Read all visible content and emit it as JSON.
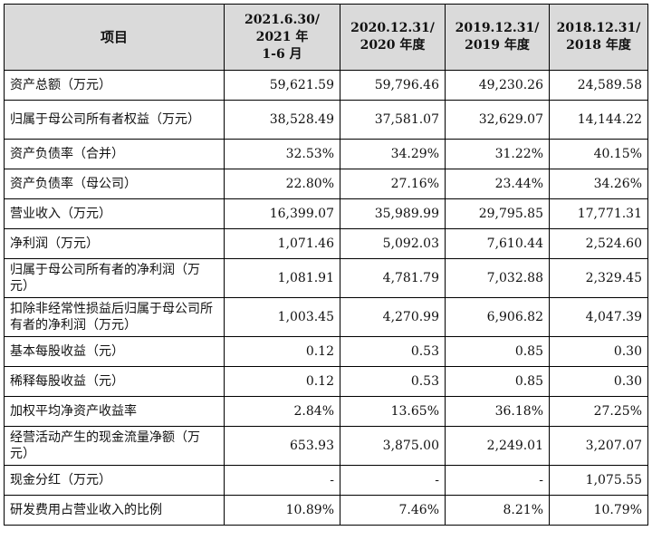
{
  "table": {
    "headers": [
      "项目",
      "2021.6.30/\n2021 年\n1-6 月",
      "2020.12.31/\n2020 年度",
      "2019.12.31/\n2019 年度",
      "2018.12.31/\n2018 年度"
    ],
    "rows": [
      {
        "label": "资产总额（万元）",
        "values": [
          "59,621.59",
          "59,796.46",
          "49,230.26",
          "24,589.58"
        ]
      },
      {
        "label": "归属于母公司所有者权益（万元）",
        "values": [
          "38,528.49",
          "37,581.07",
          "32,629.07",
          "14,144.22"
        ]
      },
      {
        "label": "资产负债率（合并）",
        "values": [
          "32.53%",
          "34.29%",
          "31.22%",
          "40.15%"
        ]
      },
      {
        "label": "资产负债率（母公司）",
        "values": [
          "22.80%",
          "27.16%",
          "23.44%",
          "34.26%"
        ]
      },
      {
        "label": "营业收入（万元）",
        "values": [
          "16,399.07",
          "35,989.99",
          "29,795.85",
          "17,771.31"
        ]
      },
      {
        "label": "净利润（万元）",
        "values": [
          "1,071.46",
          "5,092.03",
          "7,610.44",
          "2,524.60"
        ]
      },
      {
        "label": "归属于母公司所有者的净利润（万元）",
        "values": [
          "1,081.91",
          "4,781.79",
          "7,032.88",
          "2,329.45"
        ]
      },
      {
        "label": "扣除非经常性损益后归属于母公司所有者的净利润（万元）",
        "values": [
          "1,003.45",
          "4,270.99",
          "6,906.82",
          "4,047.39"
        ]
      },
      {
        "label": "基本每股收益（元）",
        "values": [
          "0.12",
          "0.53",
          "0.85",
          "0.30"
        ]
      },
      {
        "label": "稀释每股收益（元）",
        "values": [
          "0.12",
          "0.53",
          "0.85",
          "0.30"
        ]
      },
      {
        "label": "加权平均净资产收益率",
        "values": [
          "2.84%",
          "13.65%",
          "36.18%",
          "27.25%"
        ]
      },
      {
        "label": "经营活动产生的现金流量净额（万元）",
        "values": [
          "653.93",
          "3,875.00",
          "2,249.01",
          "3,207.07"
        ]
      },
      {
        "label": "现金分红（万元）",
        "values": [
          "-",
          "-",
          "-",
          "1,075.55"
        ]
      },
      {
        "label": "研发费用占营业收入的比例",
        "values": [
          "10.89%",
          "7.46%",
          "8.21%",
          "10.79%"
        ]
      }
    ]
  }
}
